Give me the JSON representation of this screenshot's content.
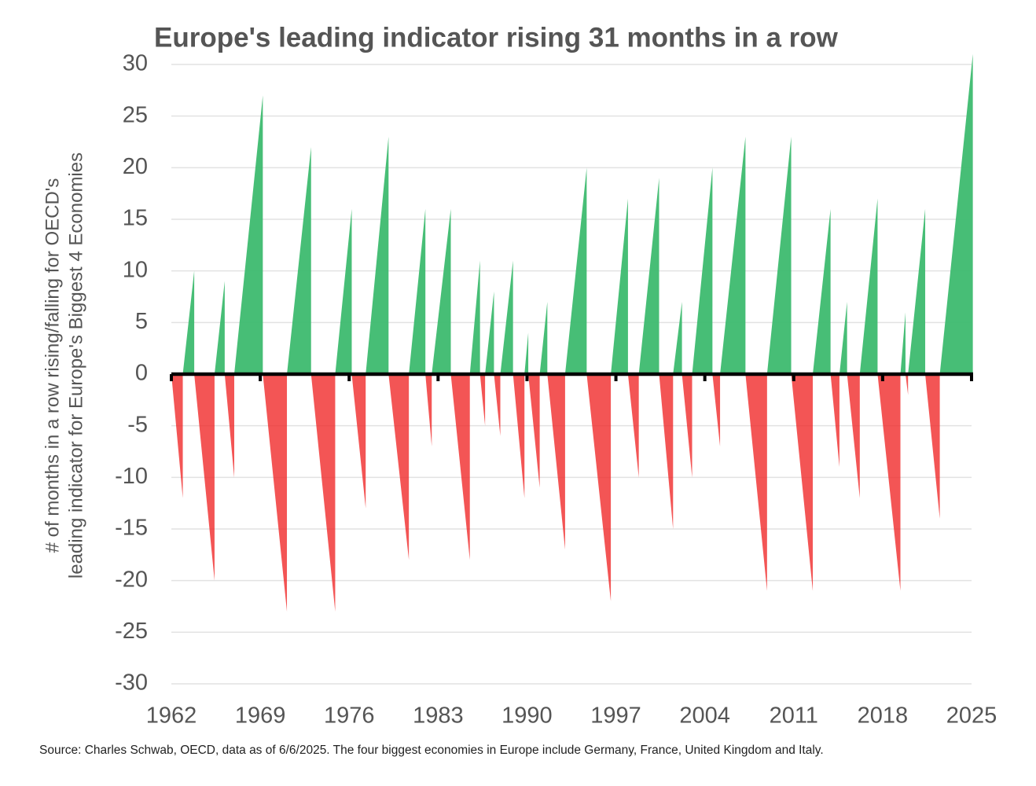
{
  "chart_data": {
    "type": "sawtooth",
    "title": "Europe's leading indicator rising 31 months in a row",
    "ylabel": [
      "# of months in a row rising/falling for OECD's",
      "leading indicator for Europe's Biggest 4 Economies"
    ],
    "source": "Source: Charles Schwab, OECD, data as of 6/6/2025. The four biggest economies in Europe include Germany, France, United Kingdom and Italy.",
    "x": [
      1962.9,
      1963.8,
      1965.4,
      1966.2,
      1966.95,
      1969.2,
      1971.1,
      1973.0,
      1974.9,
      1976.2,
      1977.3,
      1979.1,
      1980.7,
      1982.0,
      1982.5,
      1984.0,
      1985.5,
      1986.3,
      1986.7,
      1987.4,
      1987.9,
      1988.9,
      1989.8,
      1990.1,
      1991.0,
      1991.6,
      1993.0,
      1994.7,
      1996.6,
      1997.95,
      1998.8,
      2000.4,
      2001.5,
      2002.2,
      2003.0,
      2004.6,
      2005.2,
      2007.2,
      2008.9,
      2010.8,
      2012.5,
      2013.9,
      2014.6,
      2015.2,
      2016.2,
      2017.6,
      2019.4,
      2019.8,
      2020.0,
      2021.35,
      2022.5,
      2025.1
    ],
    "values": [
      -12,
      10,
      -20,
      9,
      -10,
      27,
      -23,
      22,
      -23,
      16,
      -13,
      23,
      -18,
      16,
      -7,
      16,
      -18,
      11,
      -5,
      8,
      -6,
      11,
      -12,
      4,
      -11,
      7,
      -17,
      20,
      -22,
      17,
      -10,
      19,
      -15,
      7,
      -10,
      20,
      -7,
      23,
      -21,
      23,
      -21,
      16,
      -9,
      7,
      -12,
      17,
      -21,
      6,
      -2,
      16,
      -14,
      31
    ],
    "positive_color": "#3dba6f",
    "negative_color": "#f02b2b",
    "xlim": [
      1962,
      2025
    ],
    "xticks": [
      1962,
      1969,
      1976,
      1983,
      1990,
      1997,
      2004,
      2011,
      2018,
      2025
    ],
    "ylim": [
      -30,
      30
    ],
    "yticks": [
      -30,
      -25,
      -20,
      -15,
      -10,
      -5,
      0,
      5,
      10,
      15,
      20,
      25,
      30
    ],
    "grid": true
  }
}
